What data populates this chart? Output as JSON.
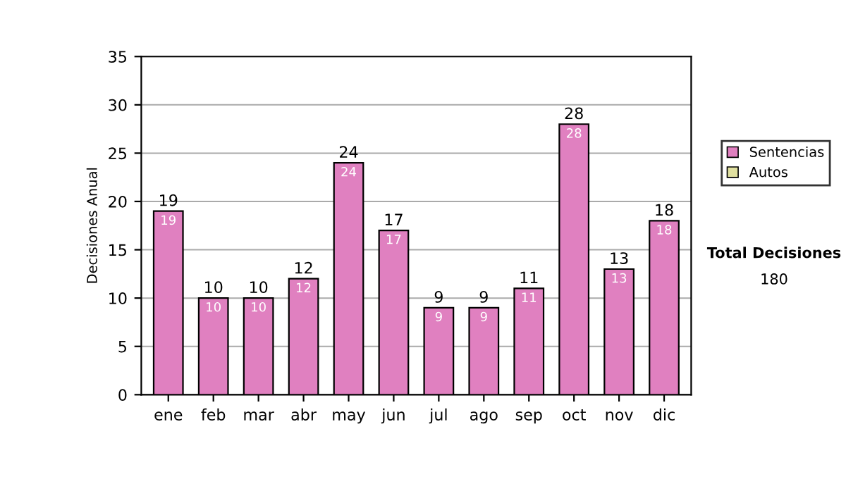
{
  "chart_data": {
    "type": "bar",
    "stacked": true,
    "ylabel": "Decisiones Anual",
    "categories": [
      "ene",
      "feb",
      "mar",
      "abr",
      "may",
      "jun",
      "jul",
      "ago",
      "sep",
      "oct",
      "nov",
      "dic"
    ],
    "series": [
      {
        "name": "Sentencias",
        "color": "#e080c0",
        "values": [
          19,
          10,
          10,
          12,
          24,
          17,
          9,
          9,
          11,
          28,
          13,
          18
        ],
        "value_labels": [
          "19",
          "10",
          "10",
          "12",
          "24",
          "17",
          "9",
          "9",
          "11",
          "28",
          "13",
          "18"
        ]
      },
      {
        "name": "Autos",
        "color": "#e0e0a0",
        "values": [
          0,
          0,
          0,
          0,
          0,
          0,
          0,
          0,
          0,
          0,
          0,
          0
        ]
      }
    ],
    "totals": [
      "19",
      "10",
      "10",
      "12",
      "24",
      "17",
      "9",
      "9",
      "11",
      "28",
      "13",
      "18"
    ],
    "ylim": [
      0,
      35
    ],
    "yticks": [
      0,
      5,
      10,
      15,
      20,
      25,
      30,
      35
    ],
    "grid": "y",
    "legend": "right",
    "annotations": [
      "Total Decisiones",
      "180"
    ]
  }
}
